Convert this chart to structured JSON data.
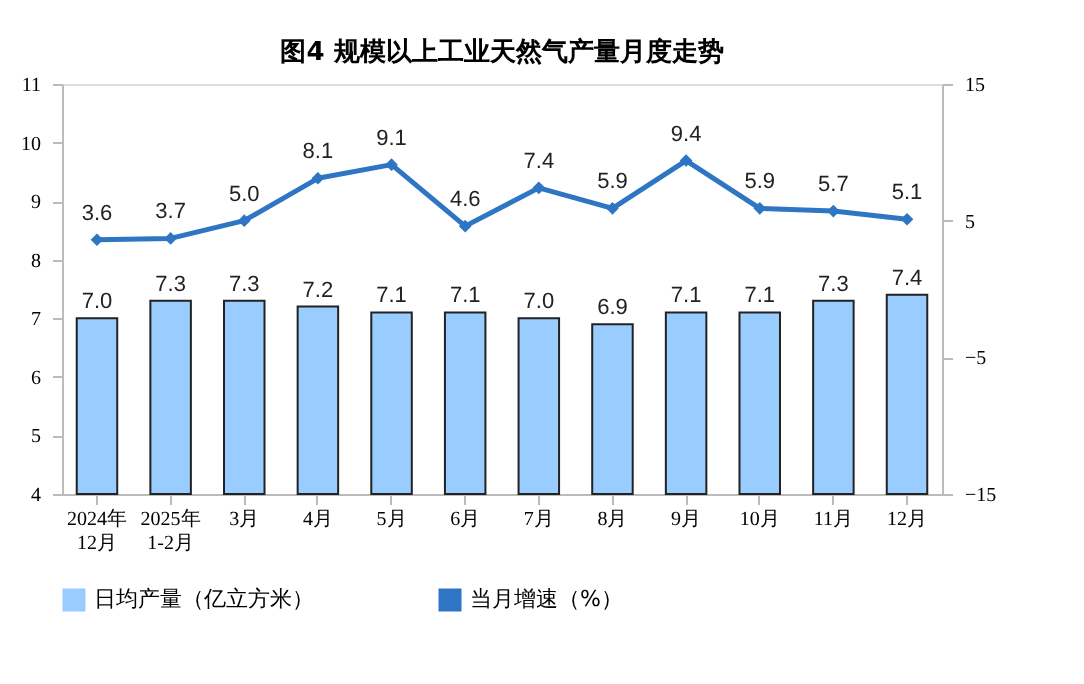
{
  "chart_data": {
    "type": "bar",
    "title": "图4  规模以上工业天然气产量月度走势",
    "categories": [
      "2024年\n12月",
      "2025年\n1-2月",
      "3月",
      "4月",
      "5月",
      "6月",
      "7月",
      "8月",
      "9月",
      "10月",
      "11月",
      "12月"
    ],
    "series": [
      {
        "name": "日均产量（亿立方米）",
        "color": "#99ccff",
        "values": [
          7.0,
          7.3,
          7.3,
          7.2,
          7.1,
          7.1,
          7.0,
          6.9,
          7.1,
          7.1,
          7.3,
          7.4
        ],
        "value_labels": [
          "7.0",
          "7.3",
          "7.3",
          "7.2",
          "7.1",
          "7.1",
          "7.0",
          "6.9",
          "7.1",
          "7.1",
          "7.3",
          "7.4"
        ]
      },
      {
        "name": "当月增速（%）",
        "type": "line",
        "axis": "y2",
        "color": "#2e75c4",
        "marker": "diamond",
        "values": [
          3.6,
          3.7,
          5.0,
          8.1,
          9.1,
          4.6,
          7.4,
          5.9,
          9.4,
          5.9,
          5.7,
          5.1
        ],
        "value_labels": [
          "3.6",
          "3.7",
          "5.0",
          "8.1",
          "9.1",
          "4.6",
          "7.4",
          "5.9",
          "9.4",
          "5.9",
          "5.7",
          "5.1"
        ]
      }
    ],
    "ylim": [
      4,
      11
    ],
    "yticks": [
      4,
      5,
      6,
      7,
      8,
      9,
      10,
      11
    ],
    "y2lim": [
      -15,
      15
    ],
    "y2ticks": [
      -15,
      -5,
      5,
      15
    ],
    "grid": false,
    "legend": "bottom"
  }
}
